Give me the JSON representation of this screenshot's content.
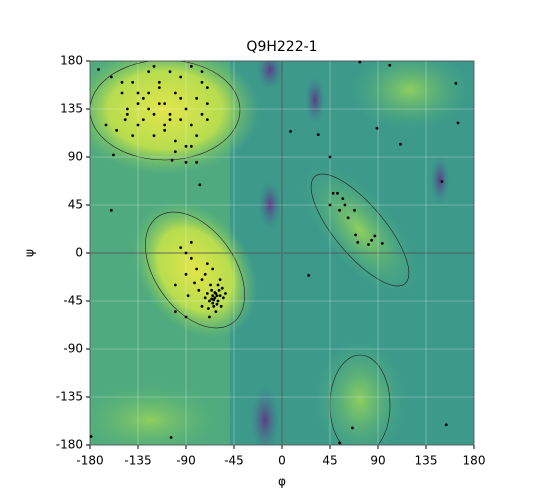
{
  "chart_data": {
    "type": "scatter",
    "title": "Q9H222-1",
    "x_label": "φ",
    "y_label": "ψ",
    "x": [
      -150,
      -145,
      -140,
      -135,
      -130,
      -125,
      -120,
      -115,
      -110,
      -105,
      -100,
      -95,
      -90,
      -85,
      -80,
      -75,
      -70,
      -140,
      -130,
      -120,
      -110,
      -100,
      -90,
      -80,
      -75,
      -70,
      -125,
      -115,
      -105,
      -95,
      -85,
      -80,
      -90,
      -100,
      -110,
      -120,
      -135,
      -150,
      -160,
      -165,
      -155,
      -70,
      -75,
      -85,
      -95,
      -105,
      -115,
      -125,
      -135,
      -145,
      -63,
      -65,
      -60,
      -62,
      -68,
      -58,
      -66,
      -61,
      -64,
      -70,
      -55,
      -67,
      -72,
      -59,
      -62,
      -65,
      -57,
      -60,
      -64,
      -69,
      -75,
      -80,
      -85,
      -90,
      -78,
      -72,
      -82,
      -88,
      -95,
      -70,
      -85,
      -90,
      -100,
      -75,
      -68,
      -53,
      -56,
      -61,
      -66,
      -63,
      45,
      34,
      8,
      89,
      111,
      163,
      165,
      150,
      73,
      101,
      25,
      154,
      54,
      66,
      -179,
      -104,
      48,
      52,
      57,
      45,
      54,
      68,
      62,
      69,
      71,
      84,
      87,
      81,
      94,
      59,
      -158,
      -147,
      -103,
      -77,
      -160,
      -172,
      -90,
      -100,
      -65,
      -58
    ],
    "values": [
      150,
      135,
      160,
      120,
      145,
      170,
      130,
      155,
      140,
      125,
      150,
      165,
      135,
      120,
      145,
      160,
      140,
      110,
      125,
      175,
      115,
      105,
      100,
      110,
      130,
      155,
      150,
      160,
      170,
      145,
      100,
      85,
      85,
      95,
      120,
      110,
      140,
      160,
      165,
      120,
      115,
      125,
      170,
      175,
      125,
      130,
      140,
      135,
      150,
      130,
      -42,
      -40,
      -45,
      -38,
      -45,
      -40,
      -35,
      -48,
      -50,
      -38,
      -42,
      -30,
      -42,
      -35,
      -55,
      -47,
      -50,
      -30,
      -44,
      -52,
      -25,
      -15,
      -5,
      0,
      -35,
      -20,
      -28,
      -40,
      5,
      -10,
      10,
      -20,
      -30,
      -50,
      -60,
      -38,
      -33,
      -40,
      -43,
      -37,
      90,
      111,
      114,
      117,
      102,
      159,
      122,
      67,
      179,
      176,
      -21,
      -161,
      -178,
      -164,
      -172,
      -173,
      56,
      56,
      51,
      45,
      40,
      40,
      33,
      17,
      10,
      12,
      16,
      8,
      9,
      45,
      92,
      125,
      87,
      64,
      40,
      172,
      -60,
      -55,
      -15,
      -25
    ],
    "color": "#000000",
    "xlim": [
      -180,
      180
    ],
    "ylim": [
      -180,
      180
    ],
    "xticks": [
      -180,
      -135,
      -90,
      -45,
      0,
      45,
      90,
      135,
      180
    ],
    "yticks": [
      -180,
      -135,
      -90,
      -45,
      0,
      45,
      90,
      135,
      180
    ],
    "grid": true
  }
}
